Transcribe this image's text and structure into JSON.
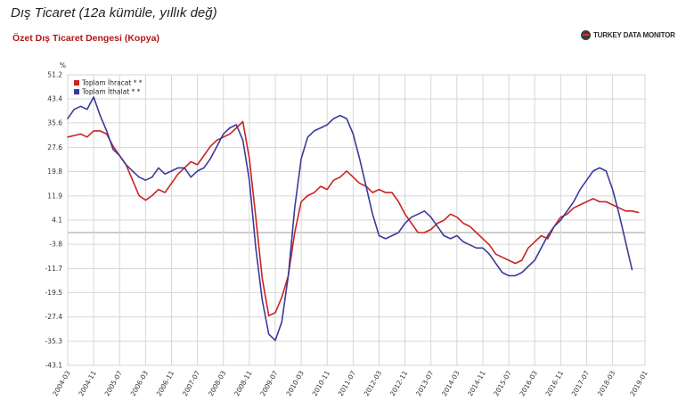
{
  "header": {
    "caption": "Dış Ticaret (12a kümüle, yıllık değ)",
    "chart_title": "Özet Dış Ticaret Dengesi (Kopya)",
    "brand": "TURKEY DATA MONITOR"
  },
  "colors": {
    "export": "#cc2222",
    "import": "#3a3a99",
    "grid": "#d6d6d6",
    "zero_line": "#9a9a9a",
    "title": "#b01818"
  },
  "chart_data": {
    "type": "line",
    "ylabel": "%",
    "ylim": [
      -43.1,
      51.2
    ],
    "yticks": [
      51.2,
      43.4,
      35.6,
      27.6,
      19.8,
      11.9,
      4.1,
      -3.8,
      -11.7,
      -19.5,
      -27.4,
      -35.3,
      -43.1
    ],
    "ytick_labels": [
      "51.2",
      "43.4",
      "35.6",
      "27.6",
      "19.8",
      "11.9",
      "4.1",
      "-3.8",
      "-11.7",
      "-19.5",
      "-27.4",
      "-35.3",
      "-43.1"
    ],
    "xlim": [
      "2004-03",
      "2019-01"
    ],
    "xticks": [
      "2004-03",
      "2004-11",
      "2005-07",
      "2006-03",
      "2006-11",
      "2007-07",
      "2008-03",
      "2008-11",
      "2009-07",
      "2010-03",
      "2010-11",
      "2011-07",
      "2012-03",
      "2012-11",
      "2013-07",
      "2014-03",
      "2014-11",
      "2015-07",
      "2016-03",
      "2016-11",
      "2017-07",
      "2018-03",
      "2019-01"
    ],
    "legend_position": "top-left",
    "grid": true,
    "series": [
      {
        "name": "Toplam İhracat * *",
        "color": "#cc2222",
        "points": [
          [
            "2004-03",
            31
          ],
          [
            "2004-07",
            32
          ],
          [
            "2004-09",
            31
          ],
          [
            "2004-11",
            33
          ],
          [
            "2005-01",
            33
          ],
          [
            "2005-03",
            32
          ],
          [
            "2005-05",
            28
          ],
          [
            "2005-07",
            25
          ],
          [
            "2005-09",
            22
          ],
          [
            "2005-11",
            17
          ],
          [
            "2006-01",
            12
          ],
          [
            "2006-03",
            10.5
          ],
          [
            "2006-05",
            12
          ],
          [
            "2006-07",
            14
          ],
          [
            "2006-09",
            13
          ],
          [
            "2006-11",
            16
          ],
          [
            "2007-01",
            19
          ],
          [
            "2007-03",
            21
          ],
          [
            "2007-05",
            23
          ],
          [
            "2007-07",
            22
          ],
          [
            "2007-09",
            25
          ],
          [
            "2007-11",
            28
          ],
          [
            "2008-01",
            30
          ],
          [
            "2008-03",
            31
          ],
          [
            "2008-05",
            32
          ],
          [
            "2008-07",
            34
          ],
          [
            "2008-09",
            36
          ],
          [
            "2008-11",
            24
          ],
          [
            "2009-01",
            5
          ],
          [
            "2009-03",
            -15
          ],
          [
            "2009-05",
            -27
          ],
          [
            "2009-07",
            -26
          ],
          [
            "2009-09",
            -21
          ],
          [
            "2009-11",
            -14
          ],
          [
            "2010-01",
            0
          ],
          [
            "2010-03",
            10
          ],
          [
            "2010-05",
            12
          ],
          [
            "2010-07",
            13
          ],
          [
            "2010-09",
            15
          ],
          [
            "2010-11",
            14
          ],
          [
            "2011-01",
            17
          ],
          [
            "2011-03",
            18
          ],
          [
            "2011-05",
            20
          ],
          [
            "2011-07",
            18
          ],
          [
            "2011-09",
            16
          ],
          [
            "2011-11",
            15
          ],
          [
            "2012-01",
            13
          ],
          [
            "2012-03",
            14
          ],
          [
            "2012-05",
            13
          ],
          [
            "2012-07",
            13
          ],
          [
            "2012-09",
            10
          ],
          [
            "2012-11",
            6
          ],
          [
            "2013-01",
            3
          ],
          [
            "2013-03",
            0
          ],
          [
            "2013-05",
            0
          ],
          [
            "2013-07",
            1
          ],
          [
            "2013-09",
            3
          ],
          [
            "2013-11",
            4
          ],
          [
            "2014-01",
            6
          ],
          [
            "2014-03",
            5
          ],
          [
            "2014-05",
            3
          ],
          [
            "2014-07",
            2
          ],
          [
            "2014-09",
            0
          ],
          [
            "2014-11",
            -2
          ],
          [
            "2015-01",
            -4
          ],
          [
            "2015-03",
            -7
          ],
          [
            "2015-05",
            -8
          ],
          [
            "2015-07",
            -9
          ],
          [
            "2015-09",
            -10
          ],
          [
            "2015-11",
            -9
          ],
          [
            "2016-01",
            -5
          ],
          [
            "2016-03",
            -3
          ],
          [
            "2016-05",
            -1
          ],
          [
            "2016-07",
            -2
          ],
          [
            "2016-09",
            2
          ],
          [
            "2016-11",
            5
          ],
          [
            "2017-01",
            6
          ],
          [
            "2017-03",
            8
          ],
          [
            "2017-05",
            9
          ],
          [
            "2017-07",
            10
          ],
          [
            "2017-09",
            11
          ],
          [
            "2017-11",
            10
          ],
          [
            "2018-01",
            10
          ],
          [
            "2018-03",
            9
          ],
          [
            "2018-05",
            8
          ],
          [
            "2018-07",
            7
          ],
          [
            "2018-09",
            7
          ],
          [
            "2018-11",
            6.5
          ]
        ]
      },
      {
        "name": "Toplam İthalat * *",
        "color": "#3a3a99",
        "points": [
          [
            "2004-03",
            37
          ],
          [
            "2004-05",
            40
          ],
          [
            "2004-07",
            41
          ],
          [
            "2004-09",
            40
          ],
          [
            "2004-11",
            44
          ],
          [
            "2005-01",
            38
          ],
          [
            "2005-03",
            33
          ],
          [
            "2005-05",
            27
          ],
          [
            "2005-07",
            25
          ],
          [
            "2005-09",
            22
          ],
          [
            "2005-11",
            20
          ],
          [
            "2006-01",
            18
          ],
          [
            "2006-03",
            17
          ],
          [
            "2006-05",
            18
          ],
          [
            "2006-07",
            21
          ],
          [
            "2006-09",
            19
          ],
          [
            "2006-11",
            20
          ],
          [
            "2007-01",
            21
          ],
          [
            "2007-03",
            21
          ],
          [
            "2007-05",
            18
          ],
          [
            "2007-07",
            20
          ],
          [
            "2007-09",
            21
          ],
          [
            "2007-11",
            24
          ],
          [
            "2008-01",
            28
          ],
          [
            "2008-03",
            32
          ],
          [
            "2008-05",
            34
          ],
          [
            "2008-07",
            35
          ],
          [
            "2008-09",
            30
          ],
          [
            "2008-11",
            17
          ],
          [
            "2009-01",
            -5
          ],
          [
            "2009-03",
            -22
          ],
          [
            "2009-05",
            -33
          ],
          [
            "2009-07",
            -35
          ],
          [
            "2009-09",
            -29
          ],
          [
            "2009-11",
            -14
          ],
          [
            "2010-01",
            8
          ],
          [
            "2010-03",
            24
          ],
          [
            "2010-05",
            31
          ],
          [
            "2010-07",
            33
          ],
          [
            "2010-09",
            34
          ],
          [
            "2010-11",
            35
          ],
          [
            "2011-01",
            37
          ],
          [
            "2011-03",
            38
          ],
          [
            "2011-05",
            37
          ],
          [
            "2011-07",
            32
          ],
          [
            "2011-09",
            24
          ],
          [
            "2011-11",
            15
          ],
          [
            "2012-01",
            6
          ],
          [
            "2012-03",
            -1
          ],
          [
            "2012-05",
            -2
          ],
          [
            "2012-07",
            -1
          ],
          [
            "2012-09",
            0
          ],
          [
            "2012-11",
            3
          ],
          [
            "2013-01",
            5
          ],
          [
            "2013-03",
            6
          ],
          [
            "2013-05",
            7
          ],
          [
            "2013-07",
            5
          ],
          [
            "2013-09",
            2
          ],
          [
            "2013-11",
            -1
          ],
          [
            "2014-01",
            -2
          ],
          [
            "2014-03",
            -1
          ],
          [
            "2014-05",
            -3
          ],
          [
            "2014-07",
            -4
          ],
          [
            "2014-09",
            -5
          ],
          [
            "2014-11",
            -5
          ],
          [
            "2015-01",
            -7
          ],
          [
            "2015-03",
            -10
          ],
          [
            "2015-05",
            -13
          ],
          [
            "2015-07",
            -14
          ],
          [
            "2015-09",
            -14
          ],
          [
            "2015-11",
            -13
          ],
          [
            "2016-01",
            -11
          ],
          [
            "2016-03",
            -9
          ],
          [
            "2016-05",
            -5
          ],
          [
            "2016-07",
            -1
          ],
          [
            "2016-09",
            2
          ],
          [
            "2016-11",
            4
          ],
          [
            "2017-01",
            7
          ],
          [
            "2017-03",
            10
          ],
          [
            "2017-05",
            14
          ],
          [
            "2017-07",
            17
          ],
          [
            "2017-09",
            20
          ],
          [
            "2017-11",
            21
          ],
          [
            "2018-01",
            20
          ],
          [
            "2018-03",
            14
          ],
          [
            "2018-05",
            6
          ],
          [
            "2018-07",
            -3
          ],
          [
            "2018-09",
            -12
          ]
        ]
      }
    ]
  }
}
